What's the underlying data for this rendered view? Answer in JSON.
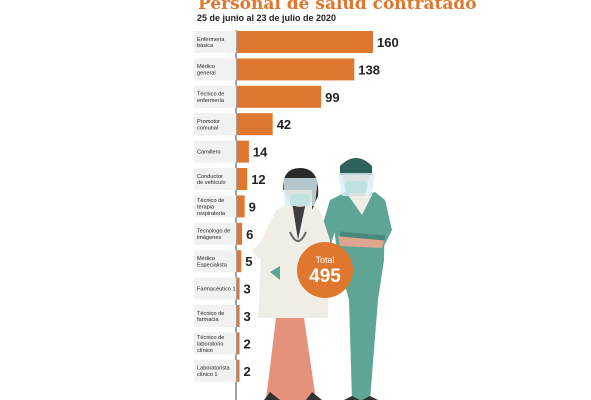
{
  "chart_data": {
    "type": "bar",
    "orientation": "horizontal",
    "title": "Personal de salud contratado",
    "subtitle": "25 de junio al 23 de julio de 2020",
    "categories": [
      [
        "Enfermeria",
        "básica"
      ],
      [
        "Médico",
        "general"
      ],
      [
        "Técnico de",
        "enfermería"
      ],
      [
        "Promotor",
        "comunal"
      ],
      [
        "Camillero"
      ],
      [
        "Conductor",
        "de vehículo"
      ],
      [
        "Técnico de",
        "terapia",
        "respiratoria"
      ],
      [
        "Tecnólogo de",
        "imágenes"
      ],
      [
        "Médico",
        "Especialista"
      ],
      [
        "Farmacéutico 1"
      ],
      [
        "Técnico de",
        "farmacia"
      ],
      [
        "Técnico de",
        "laboratorio",
        "clínico"
      ],
      [
        "Laboratorista",
        "clínico 1"
      ]
    ],
    "values": [
      160,
      138,
      99,
      42,
      14,
      12,
      9,
      6,
      5,
      3,
      3,
      2,
      2
    ],
    "xlim": [
      0,
      160
    ],
    "total_label": "Total",
    "total_value": "495",
    "colors": {
      "bar": "#e0772f",
      "title": "#e0772f",
      "badge": "#e0772f",
      "text": "#222222",
      "label_bg": "#f1f1f1"
    }
  }
}
